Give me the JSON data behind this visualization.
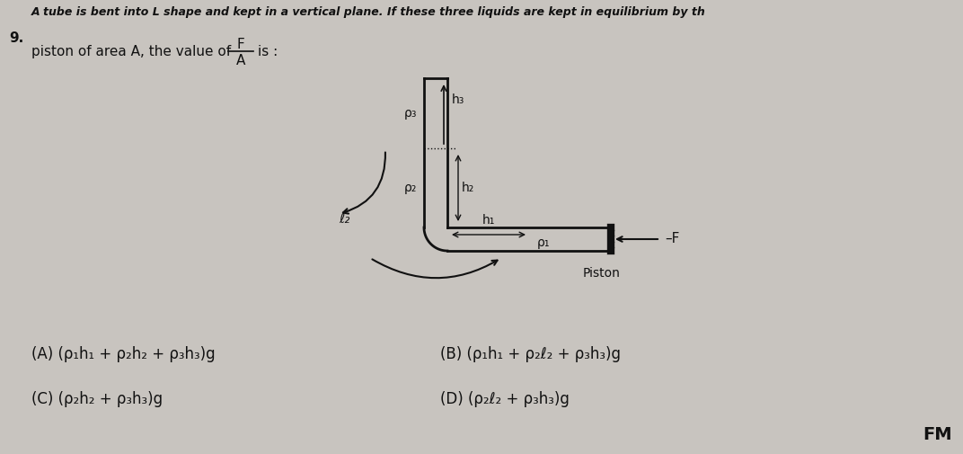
{
  "bg_color": "#c8c4bf",
  "title_top": "A tube is bent into L shape and kept in a vertical plane. If these three liquids are kept in equilibrium by th",
  "question_num": "9.",
  "text_line1": "piston of area A, the value of",
  "text_line1_end": "is :",
  "option_A": "(A) (ρ₁h₁ + ρ₂h₂ + ρ₃h₃)g",
  "option_B": "(B) (ρ₁h₁ + ρ₂ℓ₂ + ρ₃h₃)g",
  "option_C": "(C) (ρ₂h₂ + ρ₃h₃)g",
  "option_D": "(D) (ρ₂ℓ₂ + ρ₃h₃)g",
  "label_rho3": "ρ₃",
  "label_h3": "h₃",
  "label_h2": "h₂",
  "label_h1": "h₁",
  "label_rho2": "ρ₂",
  "label_rho1": "ρ₁",
  "label_ell2": "ℓ₂",
  "label_F": "–F",
  "label_piston": "Piston",
  "diagram_line_color": "#111111",
  "text_color": "#111111"
}
